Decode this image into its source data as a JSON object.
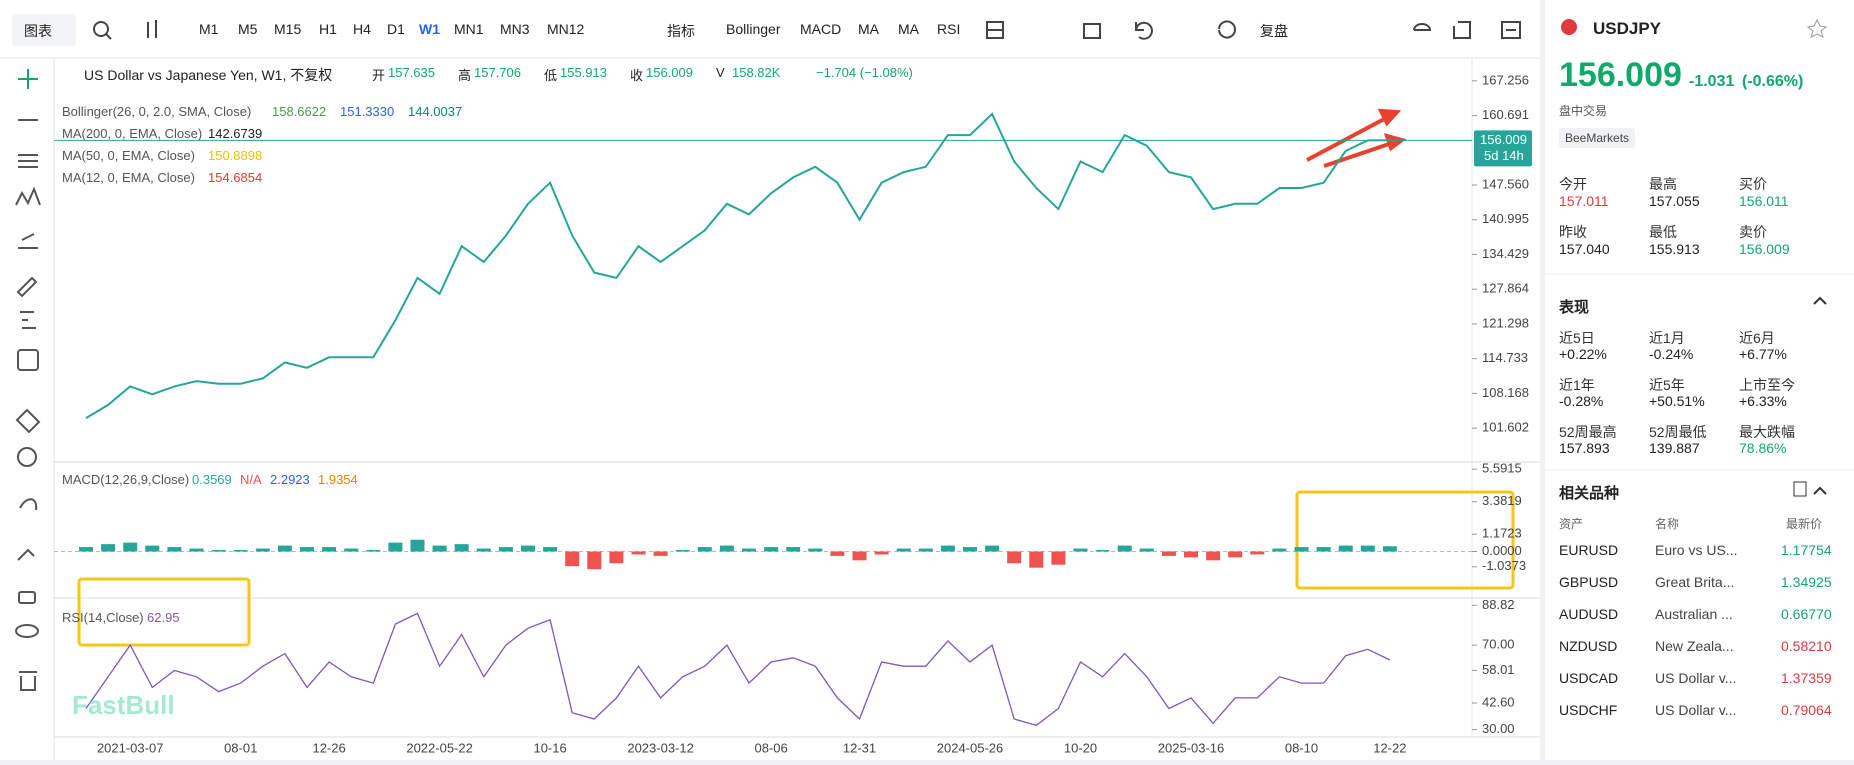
{
  "toolbar": {
    "chart_menu": "图表",
    "intervals": [
      "M1",
      "M5",
      "M15",
      "H1",
      "H4",
      "D1",
      "W1",
      "MN1",
      "MN3",
      "MN12"
    ],
    "indicator_menu": "指标",
    "indicators": [
      "Bollinger",
      "MACD",
      "MA",
      "MA",
      "RSI"
    ],
    "replay": "复盘"
  },
  "legend": {
    "title": "US Dollar vs Japanese Yen, W1, 不复权",
    "ohlc": [
      {
        "label": "开",
        "value": "157.635"
      },
      {
        "label": "高",
        "value": "157.706"
      },
      {
        "label": "低",
        "value": "155.913"
      },
      {
        "label": "收",
        "value": "156.009"
      },
      {
        "label": "V",
        "value": "158.82K"
      }
    ],
    "change": "−1.704 (−1.08%)"
  },
  "indicators": [
    {
      "name": "Bollinger(26, 0, 2.0, SMA, Close)",
      "values": [
        "158.6622",
        "151.3330",
        "144.0037"
      ],
      "colors": [
        "#43a047",
        "#2962ff",
        "#00897b"
      ]
    },
    {
      "name": "MA(200, 0, EMA, Close)",
      "values": [
        "142.6739"
      ],
      "colors": [
        "#222222"
      ]
    },
    {
      "name": "MA(50, 0, EMA, Close)",
      "values": [
        "150.8898"
      ],
      "colors": [
        "#e6c200"
      ]
    },
    {
      "name": "MA(12, 0, EMA, Close)",
      "values": [
        "154.6854"
      ],
      "colors": [
        "#e53935"
      ]
    }
  ],
  "chart_data": [
    {
      "type": "line",
      "categories": [
        null,
        null,
        "2021-03-07",
        null,
        null,
        null,
        null,
        "08-01",
        null,
        null,
        null,
        "12-26",
        null,
        null,
        null,
        null,
        "2022-05-22",
        null,
        null,
        null,
        null,
        "10-16",
        null,
        null,
        null,
        null,
        "2023-03-12",
        null,
        null,
        null,
        null,
        "08-06",
        null,
        null,
        null,
        "12-31",
        null,
        null,
        null,
        null,
        "2024-05-26",
        null,
        null,
        null,
        null,
        "10-20",
        null,
        null,
        null,
        null,
        "2025-03-16",
        null,
        null,
        null,
        null,
        "08-10",
        null,
        null,
        null,
        "12-22"
      ],
      "values": [
        103.5,
        106,
        109.5,
        108,
        109.5,
        110.5,
        110,
        110,
        111,
        114,
        113,
        115,
        115,
        115,
        122,
        130,
        127,
        136,
        133,
        138,
        144,
        148,
        138,
        131,
        130,
        136,
        133,
        136,
        139,
        144,
        142,
        146,
        149,
        151,
        148,
        141,
        148,
        150,
        151,
        157,
        157,
        161,
        152,
        147,
        143,
        152,
        150,
        157,
        155,
        150,
        149,
        143,
        144,
        144,
        147,
        147,
        148,
        154,
        156,
        156.009
      ],
      "color": "#26a69a",
      "ylim": [
        95.2,
        171.57
      ],
      "yticks": [
        167.256,
        160.691,
        {
          "value": 147.56,
          "label": "147.560"
        },
        140.995,
        134.429,
        127.864,
        121.298,
        114.733,
        108.168,
        101.602
      ],
      "price_line": {
        "value": 156.009,
        "label": "156.009"
      },
      "countdown": "5d 14h"
    },
    {
      "type": "bar",
      "legend": "MACD(12,26,9,Close)",
      "legend_values": [
        "0.3569",
        "N/A",
        "2.2923",
        "1.9354"
      ],
      "legend_colors": [
        "#26a69a",
        "#ef5350",
        "#2962ff",
        "#f57c00"
      ],
      "values": [
        0.3,
        0.5,
        0.6,
        0.4,
        0.3,
        0.2,
        0.1,
        0.1,
        0.2,
        0.4,
        0.3,
        0.3,
        0.2,
        0.1,
        0.6,
        0.8,
        0.4,
        0.5,
        0.2,
        0.3,
        0.4,
        0.3,
        -1.0,
        -1.2,
        -0.8,
        -0.2,
        -0.3,
        0.1,
        0.3,
        0.4,
        0.2,
        0.3,
        0.3,
        0.2,
        -0.3,
        -0.6,
        -0.2,
        0.2,
        0.2,
        0.4,
        0.3,
        0.4,
        -0.8,
        -1.1,
        -0.9,
        0.2,
        0.1,
        0.4,
        0.2,
        -0.3,
        -0.4,
        -0.6,
        -0.4,
        -0.2,
        0.2,
        0.3,
        0.3,
        0.4,
        0.4,
        0.3569
      ],
      "color_up": "#26a69a",
      "color_down": "#ef5350",
      "ylim": [
        -3.16,
        6.08
      ],
      "yticks": [
        5.5915,
        3.3819,
        1.1723,
        {
          "value": 0,
          "label": "0.0000"
        },
        -1.0373
      ]
    },
    {
      "type": "line",
      "legend": "RSI(14,Close)",
      "legend_value": "62.95",
      "values": [
        40,
        55,
        70,
        50,
        58,
        55,
        48,
        52,
        60,
        66,
        50,
        62,
        55,
        52,
        80,
        85,
        60,
        75,
        55,
        70,
        78,
        82,
        38,
        35,
        45,
        60,
        45,
        55,
        60,
        70,
        52,
        62,
        64,
        60,
        45,
        35,
        62,
        60,
        60,
        72,
        62,
        70,
        35,
        32,
        40,
        62,
        55,
        66,
        55,
        40,
        45,
        33,
        45,
        45,
        55,
        52,
        52,
        65,
        68,
        62.95
      ],
      "color": "#7e57c2",
      "ylim": [
        26.5,
        92.3
      ],
      "yticks": [
        88.82,
        {
          "value": 70,
          "label": "70.00"
        },
        58.01,
        {
          "value": 42.6,
          "label": "42.60"
        },
        {
          "value": 30,
          "label": "30.00"
        }
      ]
    }
  ],
  "watermark": "FastBull",
  "panel": {
    "symbol": "USDJPY",
    "price": "156.009",
    "change": "-1.031",
    "change_pct": "(-0.66%)",
    "session": "盘中交易",
    "broker": "BeeMarkets",
    "quote_stats": [
      {
        "label": "今开",
        "value": "157.011",
        "color": "#e0393e"
      },
      {
        "label": "最高",
        "value": "157.055",
        "color": "#222"
      },
      {
        "label": "买价",
        "value": "156.011",
        "color": "#12a86b"
      },
      {
        "label": "昨收",
        "value": "157.040",
        "color": "#222"
      },
      {
        "label": "最低",
        "value": "155.913",
        "color": "#222"
      },
      {
        "label": "卖价",
        "value": "156.009",
        "color": "#12a86b"
      }
    ],
    "performance": {
      "title": "表现",
      "items": [
        {
          "label": "近5日",
          "value": "+0.22%",
          "color": "#222"
        },
        {
          "label": "近1月",
          "value": "-0.24%",
          "color": "#222"
        },
        {
          "label": "近6月",
          "value": "+6.77%",
          "color": "#222"
        },
        {
          "label": "近1年",
          "value": "-0.28%",
          "color": "#222"
        },
        {
          "label": "近5年",
          "value": "+50.51%",
          "color": "#222"
        },
        {
          "label": "上市至今",
          "value": "+6.33%",
          "color": "#222"
        },
        {
          "label": "52周最高",
          "value": "157.893",
          "color": "#222"
        },
        {
          "label": "52周最低",
          "value": "139.887",
          "color": "#222"
        },
        {
          "label": "最大跌幅",
          "value": "78.86%",
          "color": "#12a86b"
        }
      ]
    },
    "related": {
      "title": "相关品种",
      "columns": [
        "资产",
        "名称",
        "最新价"
      ],
      "rows": [
        {
          "symbol": "EURUSD",
          "name": "Euro vs US...",
          "price": "1.17754",
          "color": "#12a86b"
        },
        {
          "symbol": "GBPUSD",
          "name": "Great Brita...",
          "price": "1.34925",
          "color": "#12a86b"
        },
        {
          "symbol": "AUDUSD",
          "name": "Australian ...",
          "price": "0.66770",
          "color": "#12a86b"
        },
        {
          "symbol": "NZDUSD",
          "name": "New Zeala...",
          "price": "0.58210",
          "color": "#e0393e"
        },
        {
          "symbol": "USDCAD",
          "name": "US Dollar v...",
          "price": "1.37359",
          "color": "#e0393e"
        },
        {
          "symbol": "USDCHF",
          "name": "US Dollar v...",
          "price": "0.79064",
          "color": "#e0393e"
        }
      ]
    }
  }
}
